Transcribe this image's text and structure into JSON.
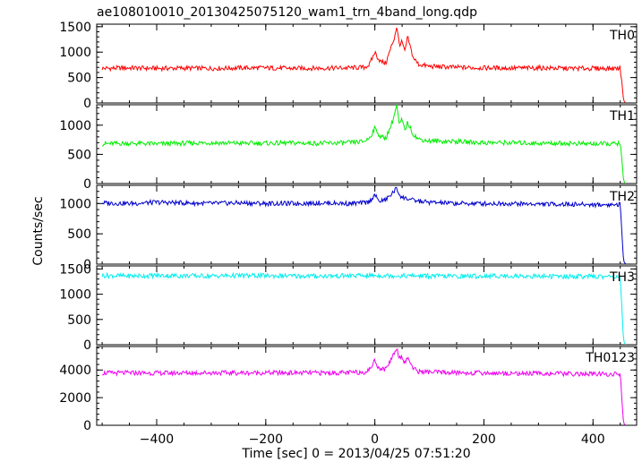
{
  "chart_data": {
    "type": "line",
    "title": "ae108010010_20130425075120_wam1_trn_4band_long.qdp",
    "xlabel": "Time [sec] 0 = 2013/04/25 07:51:20",
    "ylabel": "Counts/sec",
    "xlim": [
      -510,
      480
    ],
    "x_ticks": [
      -400,
      -200,
      0,
      200,
      400
    ],
    "x_ticklabels": [
      "−400",
      "−200",
      "0",
      "200",
      "400"
    ],
    "grid": false,
    "panels": [
      {
        "name": "TH0",
        "color": "#ff0000",
        "ylim": [
          0,
          1550
        ],
        "y_ticks": [
          0,
          500,
          1000,
          1500
        ],
        "y_ticklabels": [
          "0",
          "500",
          "1000",
          "1500"
        ],
        "x": [
          -500,
          -450,
          -400,
          -350,
          -300,
          -250,
          -200,
          -150,
          -100,
          -50,
          -20,
          -10,
          0,
          5,
          10,
          20,
          30,
          35,
          40,
          45,
          50,
          55,
          60,
          65,
          70,
          80,
          100,
          150,
          200,
          250,
          300,
          350,
          400,
          440,
          450,
          453,
          456,
          460
        ],
        "values": [
          680,
          690,
          680,
          685,
          680,
          690,
          690,
          680,
          685,
          690,
          700,
          750,
          1000,
          900,
          820,
          780,
          1100,
          1250,
          1500,
          1150,
          1200,
          1000,
          1300,
          1100,
          900,
          760,
          720,
          700,
          690,
          685,
          690,
          680,
          680,
          680,
          690,
          400,
          50,
          0
        ]
      },
      {
        "name": "TH1",
        "color": "#00ee00",
        "ylim": [
          0,
          1350
        ],
        "y_ticks": [
          0,
          500,
          1000
        ],
        "y_ticklabels": [
          "0",
          "500",
          "1000"
        ],
        "x": [
          -500,
          -450,
          -400,
          -350,
          -300,
          -250,
          -200,
          -150,
          -100,
          -50,
          -20,
          -10,
          0,
          5,
          10,
          20,
          30,
          35,
          40,
          45,
          50,
          55,
          60,
          65,
          70,
          80,
          100,
          150,
          200,
          250,
          300,
          350,
          400,
          440,
          450,
          453,
          456,
          460
        ],
        "values": [
          680,
          690,
          680,
          690,
          700,
          690,
          690,
          695,
          690,
          700,
          720,
          780,
          950,
          880,
          800,
          780,
          1000,
          1150,
          1350,
          1000,
          1100,
          900,
          1050,
          950,
          850,
          760,
          730,
          720,
          700,
          700,
          690,
          690,
          680,
          680,
          690,
          400,
          50,
          0
        ]
      },
      {
        "name": "TH2",
        "color": "#0000cc",
        "ylim": [
          0,
          1300
        ],
        "y_ticks": [
          0,
          500,
          1000
        ],
        "y_ticklabels": [
          "0",
          "500",
          "1000"
        ],
        "x": [
          -500,
          -450,
          -400,
          -350,
          -300,
          -250,
          -200,
          -150,
          -100,
          -50,
          -20,
          -10,
          0,
          5,
          10,
          20,
          30,
          40,
          45,
          50,
          60,
          70,
          100,
          150,
          200,
          250,
          300,
          350,
          400,
          440,
          450,
          453,
          456,
          460
        ],
        "values": [
          1010,
          1000,
          1020,
          1010,
          1000,
          1010,
          1000,
          1000,
          1010,
          1000,
          1010,
          1030,
          1150,
          1060,
          1040,
          1060,
          1150,
          1250,
          1150,
          1100,
          1080,
          1050,
          1020,
          1000,
          1000,
          1000,
          990,
          990,
          980,
          980,
          990,
          500,
          50,
          0
        ]
      },
      {
        "name": "TH3",
        "color": "#00eeee",
        "ylim": [
          0,
          1560
        ],
        "y_ticks": [
          0,
          500,
          1000,
          1500
        ],
        "y_ticklabels": [
          "0",
          "500",
          "1000",
          "1500"
        ],
        "x": [
          -500,
          -450,
          -400,
          -350,
          -300,
          -250,
          -200,
          -150,
          -100,
          -50,
          0,
          50,
          100,
          150,
          200,
          250,
          300,
          350,
          400,
          440,
          450,
          453,
          456,
          460
        ],
        "values": [
          1370,
          1360,
          1370,
          1365,
          1360,
          1370,
          1365,
          1360,
          1360,
          1365,
          1370,
          1365,
          1360,
          1355,
          1360,
          1360,
          1355,
          1350,
          1350,
          1350,
          1355,
          700,
          80,
          0
        ]
      },
      {
        "name": "TH0123",
        "color": "#ee00ee",
        "ylim": [
          0,
          5700
        ],
        "y_ticks": [
          0,
          2000,
          4000
        ],
        "y_ticklabels": [
          "0",
          "2000",
          "4000"
        ],
        "x": [
          -500,
          -450,
          -400,
          -350,
          -300,
          -250,
          -200,
          -150,
          -100,
          -50,
          -20,
          -10,
          0,
          5,
          10,
          20,
          30,
          35,
          40,
          45,
          50,
          55,
          60,
          65,
          70,
          80,
          100,
          150,
          200,
          250,
          300,
          350,
          400,
          440,
          450,
          453,
          456,
          460
        ],
        "values": [
          3780,
          3790,
          3780,
          3790,
          3800,
          3790,
          3800,
          3790,
          3790,
          3800,
          3850,
          4000,
          4700,
          4300,
          4100,
          4050,
          4800,
          5200,
          5600,
          4900,
          5000,
          4500,
          4900,
          4600,
          4100,
          3900,
          3850,
          3800,
          3780,
          3760,
          3750,
          3730,
          3700,
          3700,
          3720,
          1800,
          150,
          0
        ]
      }
    ]
  }
}
